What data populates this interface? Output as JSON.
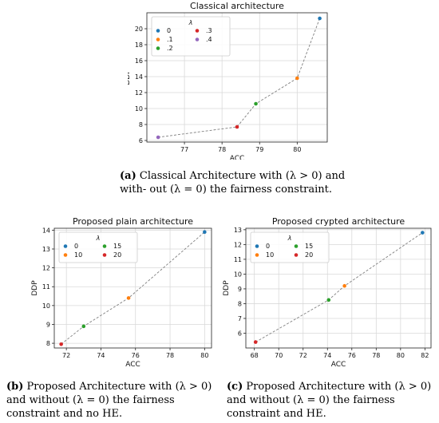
{
  "chart_data": [
    {
      "type": "scatter",
      "title": "Classical architecture",
      "xlabel": "ACC",
      "ylabel": "DDP",
      "legend_title": "λ",
      "legend_placement": "top-left",
      "grid": true,
      "connector": "dashed-line",
      "xlim": [
        76.0,
        80.8
      ],
      "ylim": [
        5.8,
        22.0
      ],
      "xticks": [
        77,
        78,
        79,
        80
      ],
      "yticks": [
        6,
        8,
        10,
        12,
        14,
        16,
        18,
        20
      ],
      "series": [
        {
          "name": "0",
          "color": "#1f77b4",
          "x": [
            80.6
          ],
          "y": [
            21.3
          ]
        },
        {
          "name": ".1",
          "color": "#ff7f0e",
          "x": [
            80.0
          ],
          "y": [
            13.8
          ]
        },
        {
          "name": ".2",
          "color": "#2ca02c",
          "x": [
            78.9
          ],
          "y": [
            10.6
          ]
        },
        {
          "name": ".3",
          "color": "#d62728",
          "x": [
            78.4
          ],
          "y": [
            7.7
          ]
        },
        {
          "name": ".4",
          "color": "#9467bd",
          "x": [
            76.3
          ],
          "y": [
            6.4
          ]
        }
      ],
      "caption": {
        "label": "(a)",
        "text": "Classical Architecture with (λ > 0) and with- out (λ = 0) the fairness constraint."
      }
    },
    {
      "type": "scatter",
      "title": "Proposed plain architecture",
      "xlabel": "ACC",
      "ylabel": "DDP",
      "legend_title": "λ",
      "legend_placement": "top-left",
      "grid": true,
      "connector": "dashed-line",
      "xlim": [
        71.3,
        80.4
      ],
      "ylim": [
        7.75,
        14.1
      ],
      "xticks": [
        72,
        74,
        76,
        78,
        80
      ],
      "yticks": [
        8,
        9,
        10,
        11,
        12,
        13,
        14
      ],
      "series": [
        {
          "name": "0",
          "color": "#1f77b4",
          "x": [
            80.0
          ],
          "y": [
            13.9
          ]
        },
        {
          "name": "10",
          "color": "#ff7f0e",
          "x": [
            75.6
          ],
          "y": [
            10.4
          ]
        },
        {
          "name": "15",
          "color": "#2ca02c",
          "x": [
            73.0
          ],
          "y": [
            8.9
          ]
        },
        {
          "name": "20",
          "color": "#d62728",
          "x": [
            71.7
          ],
          "y": [
            7.95
          ]
        }
      ],
      "caption": {
        "label": "(b)",
        "text": "Proposed Architecture with (λ > 0) and without (λ = 0) the fairness constraint and no HE."
      }
    },
    {
      "type": "scatter",
      "title": "Proposed crypted architecture",
      "xlabel": "ACC",
      "ylabel": "DDP",
      "legend_title": "λ",
      "legend_placement": "top-left",
      "grid": true,
      "connector": "dashed-line",
      "xlim": [
        67.3,
        82.5
      ],
      "ylim": [
        5.0,
        13.1
      ],
      "xticks": [
        68,
        70,
        72,
        74,
        76,
        78,
        80,
        82
      ],
      "yticks": [
        6,
        7,
        8,
        9,
        10,
        11,
        12,
        13
      ],
      "series": [
        {
          "name": "0",
          "color": "#1f77b4",
          "x": [
            81.8
          ],
          "y": [
            12.8
          ]
        },
        {
          "name": "10",
          "color": "#ff7f0e",
          "x": [
            75.4
          ],
          "y": [
            9.2
          ]
        },
        {
          "name": "15",
          "color": "#2ca02c",
          "x": [
            74.1
          ],
          "y": [
            8.25
          ]
        },
        {
          "name": "20",
          "color": "#d62728",
          "x": [
            68.1
          ],
          "y": [
            5.4
          ]
        }
      ],
      "caption": {
        "label": "(c)",
        "text": "Proposed Architecture with (λ > 0) and without (λ = 0) the fairness constraint and HE."
      }
    }
  ]
}
